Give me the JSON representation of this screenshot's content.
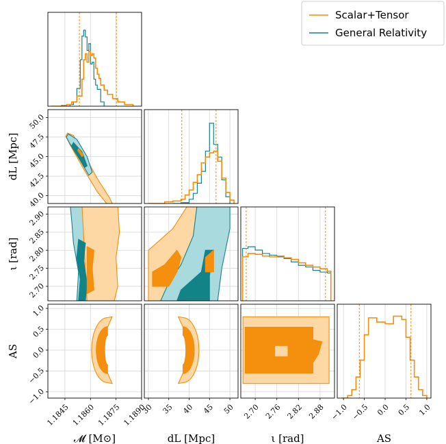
{
  "chart_data": {
    "type": "corner",
    "title": "",
    "parameters": [
      {
        "key": "mc",
        "label": "𝓜 [M⊙]",
        "range": [
          1.1835,
          1.189
        ],
        "ticks": [
          1.1845,
          1.186,
          1.1875,
          1.189
        ],
        "tick_labels": [
          "1.1845",
          "1.1860",
          "1.1875",
          "1.1890"
        ]
      },
      {
        "key": "dl",
        "label": "dL [Mpc]",
        "range": [
          29,
          52
        ],
        "ticks": [
          30,
          35,
          40,
          45,
          50
        ],
        "tick_labels": [
          "30",
          "35",
          "40",
          "45",
          "50"
        ]
      },
      {
        "key": "iota",
        "label": "ι [rad]",
        "range": [
          2.66,
          2.92
        ],
        "ticks": [
          2.7,
          2.76,
          2.82,
          2.88
        ],
        "tick_labels": [
          "2.70",
          "2.76",
          "2.82",
          "2.88"
        ],
        "y_ticks": [
          2.7,
          2.75,
          2.8,
          2.85,
          2.9
        ],
        "y_tick_labels": [
          "2.70",
          "2.75",
          "2.80",
          "2.85",
          "2.90"
        ]
      },
      {
        "key": "as",
        "label": "AS",
        "range": [
          -1.15,
          1.1
        ],
        "ticks": [
          -1.0,
          -0.5,
          0.0,
          0.5,
          1.0
        ],
        "tick_labels": [
          "−1.0",
          "−0.5",
          "0.0",
          "0.5",
          "1.0"
        ]
      }
    ],
    "dl_y_ticks": [
      40.0,
      42.5,
      45.0,
      47.5,
      50.0
    ],
    "dl_y_tick_labels": [
      "40.0",
      "42.5",
      "45.0",
      "47.5",
      "50.0"
    ],
    "dl_y_range": [
      39,
      51
    ],
    "as_y_ticks": [
      -1.0,
      -0.5,
      0.0,
      0.5,
      1.0
    ],
    "as_y_tick_labels": [
      "−1.0",
      "−0.5",
      "0.0",
      "0.5",
      "1.0"
    ],
    "legend": {
      "position": "top-right",
      "entries": [
        {
          "name": "Scalar+Tensor",
          "color": "#f28e0b"
        },
        {
          "name": "General Relativity",
          "color": "#17808a"
        }
      ]
    },
    "grid": true,
    "colors": {
      "st": "#f28e0b",
      "st_fill_outer": "#fdd7a4",
      "st_fill_inner": "#f5900f",
      "gr": "#17808a",
      "gr_fill_outer": "#a8dade",
      "gr_fill_inner": "#128487"
    },
    "diagonal": {
      "mc": {
        "st": {
          "x": [
            1.1837,
            1.1843,
            1.1846,
            1.1849,
            1.1852,
            1.1855,
            1.1856,
            1.1857,
            1.1858,
            1.1859,
            1.186,
            1.1861,
            1.1862,
            1.1863,
            1.1864,
            1.1865,
            1.1866,
            1.1868,
            1.187,
            1.1873,
            1.1876,
            1.188,
            1.1885
          ],
          "y": [
            0.0,
            0.01,
            0.02,
            0.05,
            0.12,
            0.32,
            0.55,
            0.62,
            0.52,
            0.65,
            0.6,
            0.62,
            0.57,
            0.45,
            0.38,
            0.33,
            0.25,
            0.19,
            0.14,
            0.09,
            0.05,
            0.02,
            0.01
          ]
        },
        "gr": {
          "x": [
            1.1843,
            1.1848,
            1.185,
            1.1852,
            1.1854,
            1.1855,
            1.1856,
            1.1857,
            1.1858,
            1.1859,
            1.186,
            1.1861,
            1.1862,
            1.1863,
            1.1864,
            1.1866,
            1.1868
          ],
          "y": [
            0.0,
            0.02,
            0.05,
            0.21,
            0.55,
            0.83,
            0.9,
            0.82,
            0.66,
            0.74,
            0.5,
            0.52,
            0.32,
            0.25,
            0.2,
            0.05,
            0.0
          ]
        },
        "st_quantiles": [
          1.18535,
          1.18752
        ],
        "gr_quantiles": []
      },
      "dl": {
        "st": {
          "x": [
            30,
            34,
            36,
            38,
            39,
            40,
            41,
            42,
            43,
            44,
            45,
            46,
            47,
            48,
            49,
            50,
            51
          ],
          "y": [
            0.0,
            0.02,
            0.03,
            0.05,
            0.1,
            0.16,
            0.25,
            0.34,
            0.48,
            0.55,
            0.6,
            0.62,
            0.5,
            0.3,
            0.13,
            0.04,
            0.0
          ]
        },
        "gr": {
          "x": [
            36,
            38,
            40,
            41,
            42,
            43,
            44,
            45,
            46,
            47,
            48,
            49,
            50
          ],
          "y": [
            0.0,
            0.01,
            0.05,
            0.12,
            0.24,
            0.38,
            0.62,
            0.95,
            0.7,
            0.55,
            0.28,
            0.08,
            0.0
          ]
        },
        "st_quantiles": [
          38.2,
          46.6
        ],
        "gr_quantiles": []
      },
      "iota": {
        "st": {
          "x": [
            2.665,
            2.68,
            2.7,
            2.72,
            2.74,
            2.76,
            2.78,
            2.8,
            2.82,
            2.84,
            2.86,
            2.88,
            2.9,
            2.91
          ],
          "y": [
            0.52,
            0.56,
            0.55,
            0.53,
            0.52,
            0.53,
            0.51,
            0.49,
            0.45,
            0.42,
            0.4,
            0.38,
            0.35,
            0.0
          ]
        },
        "gr": {
          "x": [
            2.665,
            2.68,
            2.7,
            2.72,
            2.74,
            2.76,
            2.78,
            2.8,
            2.82,
            2.84,
            2.86,
            2.88,
            2.9,
            2.91
          ],
          "y": [
            0.62,
            0.64,
            0.6,
            0.56,
            0.54,
            0.52,
            0.5,
            0.46,
            0.42,
            0.4,
            0.36,
            0.34,
            0.33,
            0.0
          ]
        },
        "st_quantiles": [
          2.675,
          2.895
        ],
        "gr_quantiles": []
      },
      "as": {
        "st": {
          "x": [
            -1.05,
            -0.9,
            -0.8,
            -0.7,
            -0.6,
            -0.5,
            -0.4,
            -0.2,
            0.0,
            0.2,
            0.4,
            0.5,
            0.6,
            0.7,
            0.8,
            0.9,
            1.0
          ],
          "y": [
            0.0,
            0.03,
            0.1,
            0.25,
            0.45,
            0.75,
            0.95,
            0.9,
            0.88,
            0.97,
            0.93,
            0.72,
            0.45,
            0.25,
            0.1,
            0.03,
            0.0
          ]
        },
        "st_quantiles": [
          -0.62,
          0.62
        ]
      }
    }
  }
}
